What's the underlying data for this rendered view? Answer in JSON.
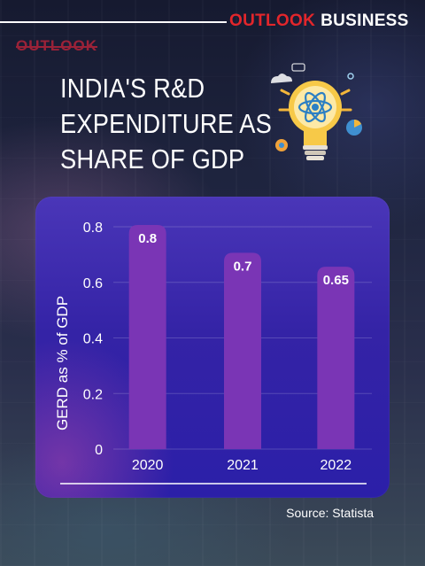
{
  "header": {
    "brand_part1": "OUTLOOK",
    "brand_part2": "BUSINESS",
    "ghost_logo": "OUTLOOK"
  },
  "title_lines": [
    "INDIA'S R&D",
    "EXPENDITURE AS",
    "SHARE OF GDP"
  ],
  "illustration": {
    "icon": "lightbulb-atom-icon"
  },
  "chart_data": {
    "type": "bar",
    "categories": [
      "2020",
      "2021",
      "2022"
    ],
    "values": [
      0.8,
      0.7,
      0.65
    ],
    "data_labels": [
      "0.8",
      "0.7",
      "0.65"
    ],
    "title": "",
    "xlabel": "",
    "ylabel": "GERD as % of GDP",
    "ylim": [
      0,
      0.8
    ],
    "yticks": [
      "0",
      "0.2",
      "0.4",
      "0.6",
      "0.8"
    ],
    "grid": true,
    "bar_color": "#7a35b5",
    "label_color": "#ffffff"
  },
  "source": "Source: Statista",
  "colors": {
    "brand_red": "#e3262b",
    "panel_blue": "#3423a6",
    "bar_purple": "#7a35b5"
  }
}
